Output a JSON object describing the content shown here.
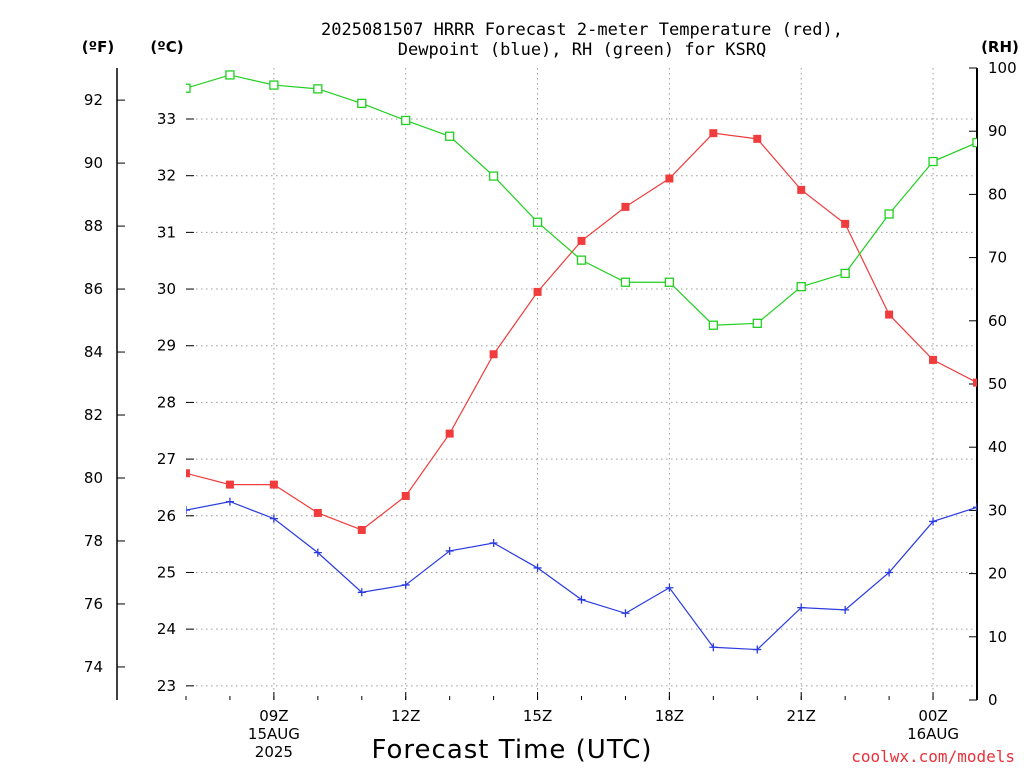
{
  "chart_data": {
    "type": "line",
    "title_lines": [
      "2025081507 HRRR Forecast 2-meter Temperature (red),",
      "Dewpoint (blue), RH (green) for KSRQ"
    ],
    "units": {
      "fahrenheit": "(ºF)",
      "celsius": "(ºC)",
      "rh": "(RH)"
    },
    "xlabel": "Forecast Time (UTC)",
    "credit": "coolwx.com/models",
    "x_ticks": [
      {
        "x": 9,
        "lines": [
          "09Z",
          "15AUG",
          "2025"
        ]
      },
      {
        "x": 12,
        "lines": [
          "12Z"
        ]
      },
      {
        "x": 15,
        "lines": [
          "15Z"
        ]
      },
      {
        "x": 18,
        "lines": [
          "18Z"
        ]
      },
      {
        "x": 21,
        "lines": [
          "21Z"
        ]
      },
      {
        "x": 24,
        "lines": [
          "00Z",
          "16AUG"
        ]
      }
    ],
    "x_hours": [
      7,
      8,
      9,
      10,
      11,
      12,
      13,
      14,
      15,
      16,
      17,
      18,
      19,
      20,
      21,
      22,
      23,
      24,
      25
    ],
    "xlim": [
      7,
      25
    ],
    "celsius_axis": {
      "lim": [
        22.75,
        33.9
      ],
      "ticks": [
        23,
        24,
        25,
        26,
        27,
        28,
        29,
        30,
        31,
        32,
        33
      ]
    },
    "fahrenheit_axis": {
      "ticks": [
        74,
        76,
        78,
        80,
        82,
        84,
        86,
        88,
        90,
        92
      ]
    },
    "rh_axis": {
      "lim": [
        0,
        100
      ],
      "ticks": [
        0,
        10,
        20,
        30,
        40,
        50,
        60,
        70,
        80,
        90,
        100
      ]
    },
    "series": [
      {
        "name": "Temperature",
        "color": "#f03c3c",
        "marker": "filled-square",
        "axis": "celsius",
        "values": [
          26.75,
          26.55,
          26.55,
          26.05,
          25.75,
          26.35,
          27.45,
          28.85,
          29.95,
          30.85,
          31.45,
          31.95,
          32.75,
          32.65,
          31.75,
          31.15,
          29.55,
          28.75,
          28.35
        ]
      },
      {
        "name": "Dewpoint",
        "color": "#2a3be0",
        "marker": "plus",
        "axis": "celsius",
        "values": [
          26.1,
          26.25,
          25.95,
          25.35,
          24.65,
          24.78,
          25.38,
          25.52,
          25.08,
          24.52,
          24.28,
          24.73,
          23.68,
          23.64,
          24.38,
          24.34,
          25.0,
          25.9,
          26.15
        ]
      },
      {
        "name": "RH",
        "color": "#20d020",
        "marker": "open-square",
        "axis": "rh",
        "values": [
          96.8,
          98.9,
          97.3,
          96.7,
          94.4,
          91.7,
          89.2,
          82.9,
          75.6,
          69.6,
          66.1,
          66.1,
          59.3,
          59.6,
          65.4,
          67.5,
          76.9,
          85.2,
          88.2
        ]
      }
    ],
    "grid": true
  }
}
